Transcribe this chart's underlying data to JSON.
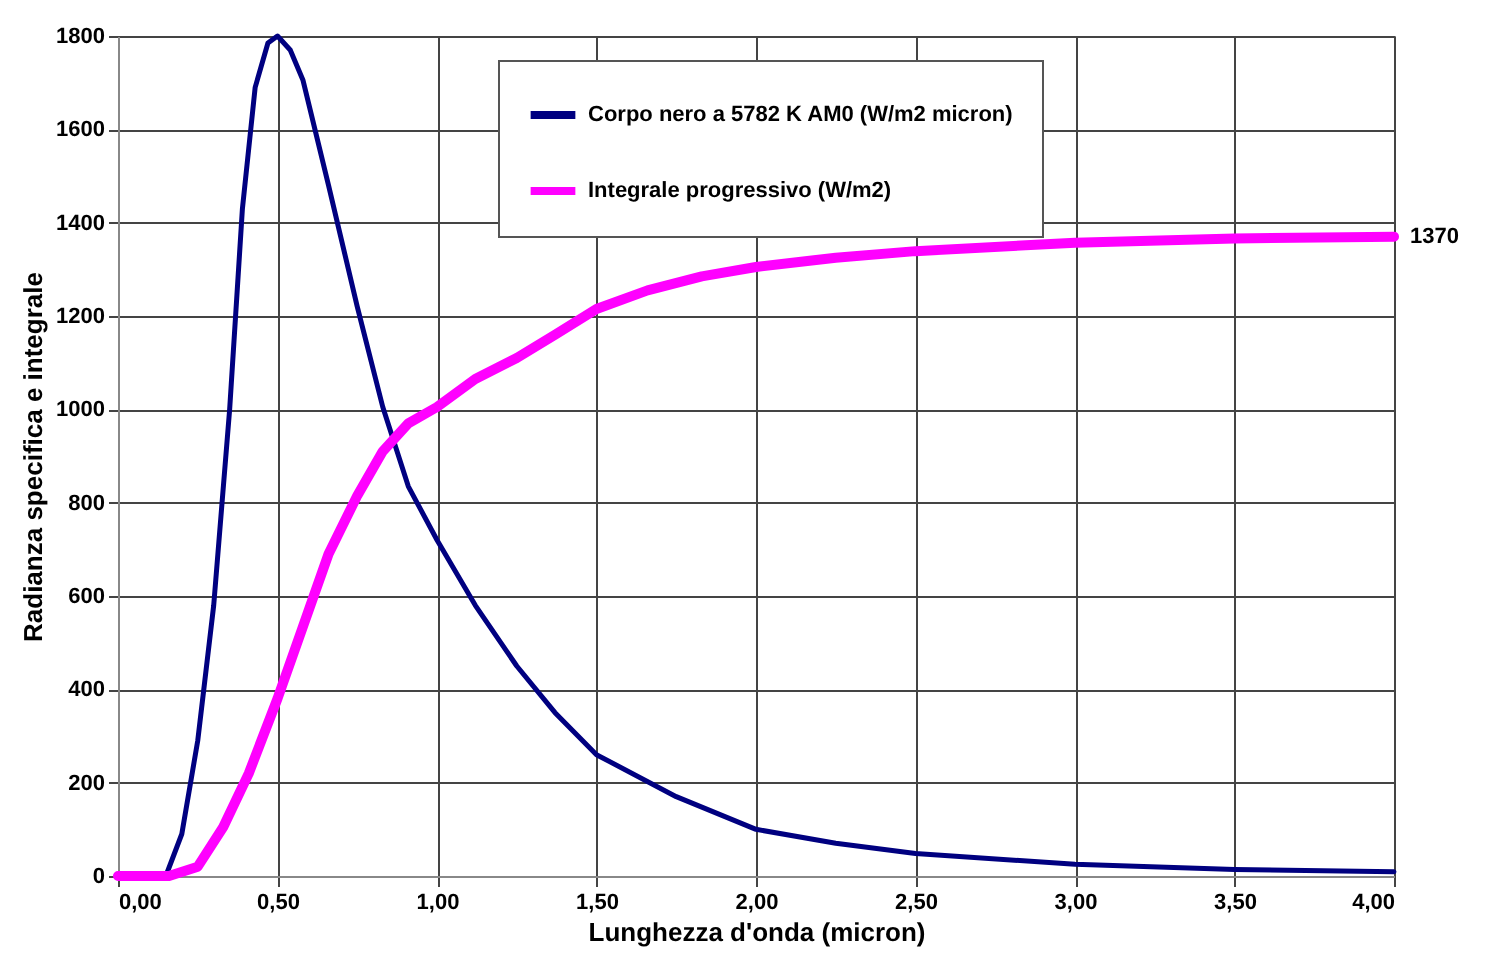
{
  "chart_data": {
    "type": "line",
    "xlabel": "Lunghezza d'onda (micron)",
    "ylabel": "Radianza specifica e integrale",
    "xlim": [
      0,
      4
    ],
    "ylim": [
      0,
      1800
    ],
    "xticks": [
      {
        "value": 0,
        "label": "0,00"
      },
      {
        "value": 0.5,
        "label": "0,50"
      },
      {
        "value": 1,
        "label": "1,00"
      },
      {
        "value": 1.5,
        "label": "1,50"
      },
      {
        "value": 2,
        "label": "2,00"
      },
      {
        "value": 2.5,
        "label": "2,50"
      },
      {
        "value": 3,
        "label": "3,00"
      },
      {
        "value": 3.5,
        "label": "3,50"
      },
      {
        "value": 4,
        "label": "4,00"
      }
    ],
    "yticks": [
      0,
      200,
      400,
      600,
      800,
      1000,
      1200,
      1400,
      1600,
      1800
    ],
    "grid": true,
    "legend": "top",
    "marker": "none",
    "line_style": "solid",
    "annotations": [
      {
        "text": "1370",
        "x": 4,
        "y": 1370
      }
    ],
    "series": [
      {
        "name": "Corpo nero a 5782 K AM0 (W/m2 micron)",
        "color": "#000080",
        "x": [
          0,
          0.15,
          0.2,
          0.25,
          0.3,
          0.35,
          0.39,
          0.43,
          0.47,
          0.5,
          0.54,
          0.58,
          0.66,
          0.75,
          0.83,
          0.91,
          1.0,
          1.12,
          1.25,
          1.37,
          1.5,
          1.75,
          2.0,
          2.25,
          2.5,
          3.0,
          3.5,
          4.0
        ],
        "values": [
          0,
          0,
          90,
          290,
          580,
          1000,
          1430,
          1690,
          1785,
          1800,
          1770,
          1705,
          1480,
          1220,
          1005,
          835,
          720,
          580,
          450,
          350,
          260,
          170,
          100,
          70,
          48,
          25,
          14,
          9
        ]
      },
      {
        "name": "Integrale progressivo (W/m2)",
        "color": "#ff00ff",
        "x": [
          0,
          0.16,
          0.25,
          0.33,
          0.41,
          0.5,
          0.58,
          0.66,
          0.75,
          0.83,
          0.91,
          1.0,
          1.12,
          1.25,
          1.37,
          1.5,
          1.66,
          1.83,
          2.0,
          2.25,
          2.5,
          3.0,
          3.5,
          4.0
        ],
        "values": [
          0,
          0,
          20,
          105,
          220,
          380,
          535,
          690,
          815,
          910,
          970,
          1005,
          1065,
          1110,
          1160,
          1215,
          1255,
          1285,
          1305,
          1325,
          1339,
          1357,
          1366,
          1370
        ]
      }
    ]
  }
}
